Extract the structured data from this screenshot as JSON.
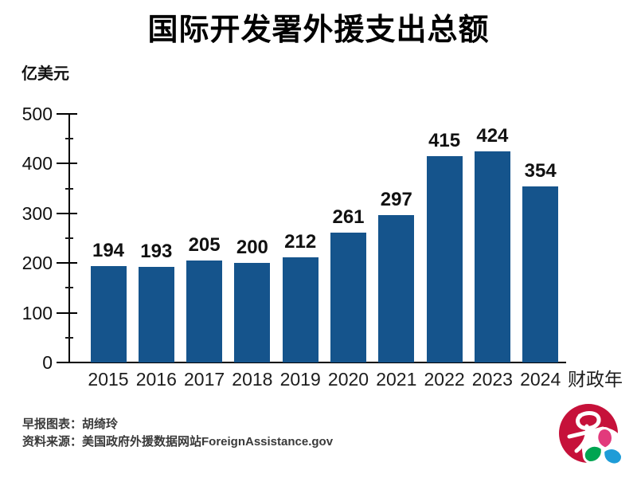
{
  "title": "国际开发署外援支出总额",
  "unit_label": "亿美元",
  "footer": {
    "credit": "早报图表：胡绮玲",
    "source": "资料来源：美国政府外援数据网站ForeignAssistance.gov"
  },
  "logo": {
    "name": "zaobao-logo",
    "colors": {
      "circle_red": "#c6113a",
      "petal_green": "#00a551",
      "petal_blue": "#1e9cd7",
      "petal_pink": "#e23a7c"
    }
  },
  "chart_data": {
    "type": "bar",
    "title": "国际开发署外援支出总额",
    "categories": [
      "2015",
      "2016",
      "2017",
      "2018",
      "2019",
      "2020",
      "2021",
      "2022",
      "2023",
      "2024"
    ],
    "values": [
      194,
      193,
      205,
      200,
      212,
      261,
      297,
      415,
      424,
      354
    ],
    "xlabel": "财政年",
    "ylabel": "亿美元",
    "ylim": [
      0,
      500
    ],
    "yticks": [
      0,
      100,
      200,
      300,
      400,
      500
    ],
    "minor_yticks": [
      50,
      150,
      250,
      350,
      450
    ],
    "bar_color": "#15548c",
    "grid": false,
    "legend": null,
    "value_labels": true
  }
}
